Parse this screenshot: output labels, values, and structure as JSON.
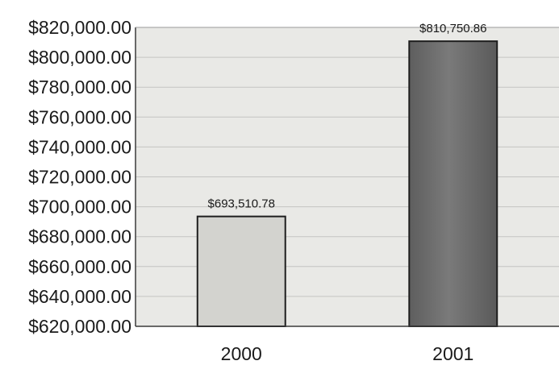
{
  "chart_data": {
    "type": "bar",
    "categories": [
      "2000",
      "2001"
    ],
    "values": [
      693510.78,
      810750.86
    ],
    "data_labels": [
      "$693,510.78",
      "$810,750.86"
    ],
    "title": "",
    "xlabel": "",
    "ylabel": "",
    "ylim": [
      620000,
      820000
    ],
    "yticks": [
      620000,
      640000,
      660000,
      680000,
      700000,
      720000,
      740000,
      760000,
      780000,
      800000,
      820000
    ],
    "ytick_labels": [
      "$620,000.00",
      "$640,000.00",
      "$660,000.00",
      "$680,000.00",
      "$700,000.00",
      "$720,000.00",
      "$740,000.00",
      "$760,000.00",
      "$780,000.00",
      "$800,000.00",
      "$820,000.00"
    ],
    "grid": true,
    "legend": "none",
    "colors": {
      "plot_background": "#e9e9e6",
      "gridline": "#c4c4c2",
      "bar_2000": "#d3d3cf",
      "bar_2001": "#6e6e6e",
      "bar_outline": "#1e1e1e",
      "axis": "#3a3a3a"
    }
  }
}
